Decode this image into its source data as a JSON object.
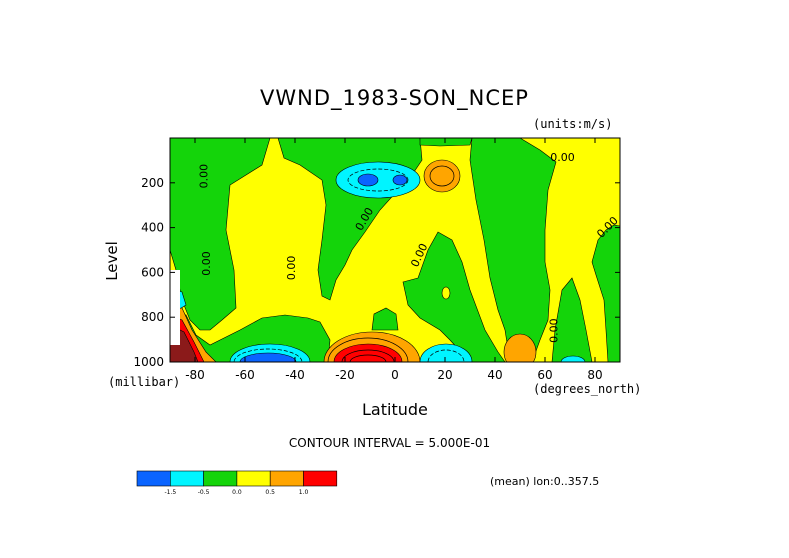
{
  "chart_data": {
    "type": "heatmap",
    "title": "VWND_1983-SON_NCEP",
    "units": "(units:m/s)",
    "xlabel": "Latitude",
    "xlabel_unit": "(degrees_north)",
    "ylabel": "Level",
    "ylabel_unit": "(millibar)",
    "xlim": [
      -90,
      90
    ],
    "ylim": [
      1000,
      0
    ],
    "x_ticks": [
      -80,
      -60,
      -40,
      -20,
      0,
      20,
      40,
      60,
      80
    ],
    "y_ticks": [
      200,
      400,
      600,
      800,
      1000
    ],
    "contour_labels": [
      "0.00",
      "0.00",
      "0.00",
      "0.00",
      "0.00",
      "0.00",
      "0.00",
      "0.00"
    ],
    "contour_interval": "CONTOUR INTERVAL = 5.000E-01",
    "mean_note": "(mean) lon:0..357.5",
    "colorbar": {
      "boundaries": [
        "-1.5",
        "-0.5",
        "0.0",
        "0.5",
        "1.0"
      ],
      "colors": [
        "#0a64ff",
        "#00f5ff",
        "#14d40a",
        "#ffff00",
        "#ffa500",
        "#ff0000"
      ]
    }
  }
}
